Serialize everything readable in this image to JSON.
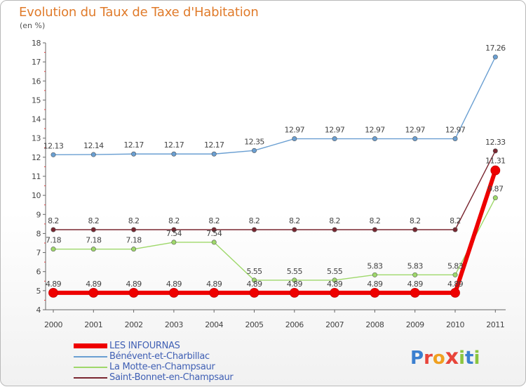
{
  "title": "Evolution du Taux de Taxe d'Habitation",
  "subtitle": "(en %)",
  "logo": {
    "text": "Proxiti",
    "letters": [
      {
        "ch": "P",
        "color": "#3a7fd0"
      },
      {
        "ch": "r",
        "color": "#e8443a"
      },
      {
        "ch": "o",
        "color": "#f0a020"
      },
      {
        "ch": "x",
        "color": "#e8443a"
      },
      {
        "ch": "i",
        "color": "#8bc53f"
      },
      {
        "ch": "t",
        "color": "#3a7fd0"
      },
      {
        "ch": "i",
        "color": "#8bc53f"
      }
    ]
  },
  "chart_data": {
    "type": "line",
    "title": "Evolution du Taux de Taxe d'Habitation",
    "ylabel": "(en %)",
    "xlabel": "",
    "categories": [
      "2000",
      "2001",
      "2002",
      "2003",
      "2004",
      "2005",
      "2006",
      "2007",
      "2008",
      "2009",
      "2010",
      "2011"
    ],
    "ylim": [
      4,
      18
    ],
    "yticks": [
      4,
      5,
      6,
      7,
      8,
      9,
      10,
      11,
      12,
      13,
      14,
      15,
      16,
      17,
      18
    ],
    "legend_position": "bottom-left",
    "series": [
      {
        "name": "LES INFOURNAS",
        "color": "#ee0000",
        "values": [
          4.89,
          4.89,
          4.89,
          4.89,
          4.89,
          4.89,
          4.89,
          4.89,
          4.89,
          4.89,
          4.89,
          11.31
        ],
        "labels": [
          "4.89",
          "4.89",
          "4.89",
          "4.89",
          "4.89",
          "4.89",
          "4.89",
          "4.89",
          "4.89",
          "4.89",
          "4.89",
          "11.31"
        ]
      },
      {
        "name": "Bénévent-et-Charbillac",
        "color": "#6a9fd2",
        "values": [
          12.13,
          12.14,
          12.17,
          12.17,
          12.17,
          12.35,
          12.97,
          12.97,
          12.97,
          12.97,
          12.97,
          17.26
        ],
        "labels": [
          "12.13",
          "12.14",
          "12.17",
          "12.17",
          "12.17",
          "12.35",
          "12.97",
          "12.97",
          "12.97",
          "12.97",
          "12.97",
          "17.26"
        ]
      },
      {
        "name": "La Motte-en-Champsaur",
        "color": "#9ed86a",
        "values": [
          7.18,
          7.18,
          7.18,
          7.54,
          7.54,
          5.55,
          5.55,
          5.55,
          5.83,
          5.83,
          5.83,
          9.87
        ],
        "labels": [
          "7.18",
          "7.18",
          "7.18",
          "7.54",
          "7.54",
          "5.55",
          "5.55",
          "5.55",
          "5.83",
          "5.83",
          "5.83",
          "9.87"
        ]
      },
      {
        "name": "Saint-Bonnet-en-Champsaur",
        "color": "#7a2630",
        "values": [
          8.2,
          8.2,
          8.2,
          8.2,
          8.2,
          8.2,
          8.2,
          8.2,
          8.2,
          8.2,
          8.2,
          12.33
        ],
        "labels": [
          "8.2",
          "8.2",
          "8.2",
          "8.2",
          "8.2",
          "8.2",
          "8.2",
          "8.2",
          "8.2",
          "8.2",
          "8.2",
          "12.33"
        ]
      }
    ]
  }
}
